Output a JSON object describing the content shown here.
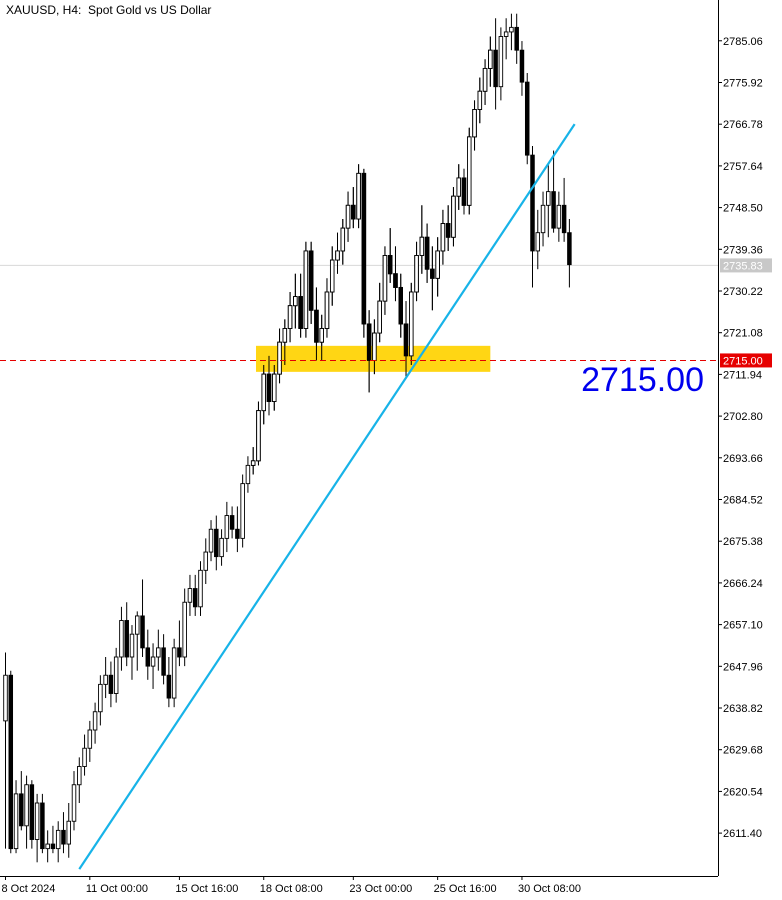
{
  "header": {
    "symbol": "XAUUSD, H4:",
    "description": "Spot Gold vs US Dollar"
  },
  "annotations": {
    "level_label": "2715.00",
    "level_marker": "2715.00",
    "current_price_marker": "2735.83"
  },
  "colors": {
    "trendline": "#17b3e8",
    "zone": "#ffd200",
    "level_line": "#e60000",
    "level_marker_bg": "#e60000",
    "big_label": "#0000ee",
    "current_marker_bg": "#c8c8c8"
  },
  "chart_data": {
    "type": "candlestick",
    "symbol": "XAUUSD",
    "timeframe": "H4",
    "ylim": [
      2602.0,
      2794.0
    ],
    "y_ticks": [
      "2785.06",
      "2775.92",
      "2766.78",
      "2757.64",
      "2748.50",
      "2739.36",
      "2730.22",
      "2721.08",
      "2711.94",
      "2702.80",
      "2693.66",
      "2684.52",
      "2675.38",
      "2666.24",
      "2657.10",
      "2647.96",
      "2638.82",
      "2629.68",
      "2620.54",
      "2611.40"
    ],
    "x_tick_labels": [
      {
        "label": "8 Oct 2024",
        "index": 0
      },
      {
        "label": "11 Oct 00:00",
        "index": 16
      },
      {
        "label": "15 Oct 16:00",
        "index": 33
      },
      {
        "label": "18 Oct 08:00",
        "index": 49
      },
      {
        "label": "23 Oct 00:00",
        "index": 66
      },
      {
        "label": "25 Oct 16:00",
        "index": 82
      },
      {
        "label": "30 Oct 08:00",
        "index": 98
      }
    ],
    "candles": [
      {
        "o": 2636,
        "h": 2651,
        "l": 2608,
        "c": 2646
      },
      {
        "o": 2646,
        "h": 2647,
        "l": 2607,
        "c": 2608
      },
      {
        "o": 2608,
        "h": 2623,
        "l": 2607,
        "c": 2620
      },
      {
        "o": 2620,
        "h": 2625,
        "l": 2612,
        "c": 2613
      },
      {
        "o": 2613,
        "h": 2624,
        "l": 2608,
        "c": 2622
      },
      {
        "o": 2622,
        "h": 2623,
        "l": 2608,
        "c": 2610
      },
      {
        "o": 2610,
        "h": 2620,
        "l": 2605,
        "c": 2618
      },
      {
        "o": 2618,
        "h": 2620,
        "l": 2607,
        "c": 2608
      },
      {
        "o": 2608,
        "h": 2612,
        "l": 2605,
        "c": 2609
      },
      {
        "o": 2609,
        "h": 2613,
        "l": 2607,
        "c": 2608
      },
      {
        "o": 2608,
        "h": 2614,
        "l": 2605,
        "c": 2612
      },
      {
        "o": 2612,
        "h": 2616,
        "l": 2607,
        "c": 2609
      },
      {
        "o": 2609,
        "h": 2618,
        "l": 2606,
        "c": 2614
      },
      {
        "o": 2614,
        "h": 2625,
        "l": 2612,
        "c": 2622
      },
      {
        "o": 2622,
        "h": 2628,
        "l": 2618,
        "c": 2626
      },
      {
        "o": 2626,
        "h": 2633,
        "l": 2624,
        "c": 2630
      },
      {
        "o": 2630,
        "h": 2636,
        "l": 2627,
        "c": 2634
      },
      {
        "o": 2634,
        "h": 2640,
        "l": 2631,
        "c": 2638
      },
      {
        "o": 2638,
        "h": 2646,
        "l": 2635,
        "c": 2644
      },
      {
        "o": 2644,
        "h": 2650,
        "l": 2641,
        "c": 2646
      },
      {
        "o": 2646,
        "h": 2649,
        "l": 2639,
        "c": 2642
      },
      {
        "o": 2642,
        "h": 2652,
        "l": 2640,
        "c": 2650
      },
      {
        "o": 2650,
        "h": 2661,
        "l": 2647,
        "c": 2658
      },
      {
        "o": 2658,
        "h": 2662,
        "l": 2648,
        "c": 2650
      },
      {
        "o": 2650,
        "h": 2657,
        "l": 2645,
        "c": 2655
      },
      {
        "o": 2655,
        "h": 2660,
        "l": 2647,
        "c": 2659
      },
      {
        "o": 2659,
        "h": 2667,
        "l": 2650,
        "c": 2652
      },
      {
        "o": 2652,
        "h": 2656,
        "l": 2645,
        "c": 2648
      },
      {
        "o": 2648,
        "h": 2653,
        "l": 2643,
        "c": 2650
      },
      {
        "o": 2650,
        "h": 2656,
        "l": 2647,
        "c": 2652
      },
      {
        "o": 2652,
        "h": 2655,
        "l": 2644,
        "c": 2646
      },
      {
        "o": 2646,
        "h": 2650,
        "l": 2639,
        "c": 2641
      },
      {
        "o": 2641,
        "h": 2654,
        "l": 2639,
        "c": 2652
      },
      {
        "o": 2652,
        "h": 2658,
        "l": 2648,
        "c": 2650
      },
      {
        "o": 2650,
        "h": 2665,
        "l": 2648,
        "c": 2662
      },
      {
        "o": 2662,
        "h": 2668,
        "l": 2659,
        "c": 2665
      },
      {
        "o": 2665,
        "h": 2668,
        "l": 2659,
        "c": 2661
      },
      {
        "o": 2661,
        "h": 2671,
        "l": 2659,
        "c": 2669
      },
      {
        "o": 2669,
        "h": 2676,
        "l": 2666,
        "c": 2673
      },
      {
        "o": 2673,
        "h": 2680,
        "l": 2671,
        "c": 2678
      },
      {
        "o": 2678,
        "h": 2681,
        "l": 2669,
        "c": 2672
      },
      {
        "o": 2672,
        "h": 2678,
        "l": 2670,
        "c": 2676
      },
      {
        "o": 2676,
        "h": 2684,
        "l": 2673,
        "c": 2681
      },
      {
        "o": 2681,
        "h": 2683,
        "l": 2676,
        "c": 2678
      },
      {
        "o": 2678,
        "h": 2683,
        "l": 2673,
        "c": 2676
      },
      {
        "o": 2676,
        "h": 2690,
        "l": 2674,
        "c": 2688
      },
      {
        "o": 2688,
        "h": 2694,
        "l": 2686,
        "c": 2692
      },
      {
        "o": 2692,
        "h": 2696,
        "l": 2690,
        "c": 2693
      },
      {
        "o": 2693,
        "h": 2706,
        "l": 2692,
        "c": 2704
      },
      {
        "o": 2704,
        "h": 2714,
        "l": 2701,
        "c": 2712
      },
      {
        "o": 2712,
        "h": 2716,
        "l": 2703,
        "c": 2706
      },
      {
        "o": 2706,
        "h": 2714,
        "l": 2704,
        "c": 2712
      },
      {
        "o": 2712,
        "h": 2722,
        "l": 2710,
        "c": 2719
      },
      {
        "o": 2719,
        "h": 2724,
        "l": 2714,
        "c": 2722
      },
      {
        "o": 2722,
        "h": 2730,
        "l": 2719,
        "c": 2727
      },
      {
        "o": 2727,
        "h": 2734,
        "l": 2722,
        "c": 2729
      },
      {
        "o": 2729,
        "h": 2734,
        "l": 2720,
        "c": 2722
      },
      {
        "o": 2722,
        "h": 2741,
        "l": 2720,
        "c": 2739
      },
      {
        "o": 2739,
        "h": 2741,
        "l": 2723,
        "c": 2726
      },
      {
        "o": 2726,
        "h": 2731,
        "l": 2715,
        "c": 2719
      },
      {
        "o": 2719,
        "h": 2725,
        "l": 2715,
        "c": 2722
      },
      {
        "o": 2722,
        "h": 2733,
        "l": 2720,
        "c": 2730
      },
      {
        "o": 2730,
        "h": 2740,
        "l": 2727,
        "c": 2737
      },
      {
        "o": 2737,
        "h": 2743,
        "l": 2734,
        "c": 2739
      },
      {
        "o": 2739,
        "h": 2746,
        "l": 2736,
        "c": 2744
      },
      {
        "o": 2744,
        "h": 2752,
        "l": 2741,
        "c": 2749
      },
      {
        "o": 2749,
        "h": 2753,
        "l": 2744,
        "c": 2746
      },
      {
        "o": 2746,
        "h": 2758,
        "l": 2744,
        "c": 2756
      },
      {
        "o": 2756,
        "h": 2757,
        "l": 2720,
        "c": 2723
      },
      {
        "o": 2723,
        "h": 2726,
        "l": 2708,
        "c": 2715
      },
      {
        "o": 2715,
        "h": 2724,
        "l": 2712,
        "c": 2721
      },
      {
        "o": 2721,
        "h": 2732,
        "l": 2719,
        "c": 2728
      },
      {
        "o": 2728,
        "h": 2740,
        "l": 2725,
        "c": 2738
      },
      {
        "o": 2738,
        "h": 2744,
        "l": 2732,
        "c": 2734
      },
      {
        "o": 2734,
        "h": 2740,
        "l": 2728,
        "c": 2731
      },
      {
        "o": 2731,
        "h": 2734,
        "l": 2720,
        "c": 2723
      },
      {
        "o": 2723,
        "h": 2728,
        "l": 2711,
        "c": 2716
      },
      {
        "o": 2716,
        "h": 2732,
        "l": 2714,
        "c": 2730
      },
      {
        "o": 2730,
        "h": 2741,
        "l": 2728,
        "c": 2738
      },
      {
        "o": 2738,
        "h": 2749,
        "l": 2734,
        "c": 2742
      },
      {
        "o": 2742,
        "h": 2745,
        "l": 2732,
        "c": 2735
      },
      {
        "o": 2735,
        "h": 2740,
        "l": 2726,
        "c": 2733
      },
      {
        "o": 2733,
        "h": 2742,
        "l": 2729,
        "c": 2739
      },
      {
        "o": 2739,
        "h": 2748,
        "l": 2736,
        "c": 2745
      },
      {
        "o": 2745,
        "h": 2749,
        "l": 2739,
        "c": 2742
      },
      {
        "o": 2742,
        "h": 2753,
        "l": 2740,
        "c": 2751
      },
      {
        "o": 2751,
        "h": 2758,
        "l": 2748,
        "c": 2755
      },
      {
        "o": 2755,
        "h": 2757,
        "l": 2747,
        "c": 2749
      },
      {
        "o": 2749,
        "h": 2766,
        "l": 2747,
        "c": 2764
      },
      {
        "o": 2764,
        "h": 2772,
        "l": 2761,
        "c": 2770
      },
      {
        "o": 2770,
        "h": 2777,
        "l": 2767,
        "c": 2774
      },
      {
        "o": 2774,
        "h": 2781,
        "l": 2771,
        "c": 2779
      },
      {
        "o": 2779,
        "h": 2786,
        "l": 2775,
        "c": 2783
      },
      {
        "o": 2783,
        "h": 2790,
        "l": 2770,
        "c": 2775
      },
      {
        "o": 2775,
        "h": 2788,
        "l": 2772,
        "c": 2786
      },
      {
        "o": 2786,
        "h": 2790,
        "l": 2781,
        "c": 2787
      },
      {
        "o": 2787,
        "h": 2791,
        "l": 2783,
        "c": 2788
      },
      {
        "o": 2788,
        "h": 2791,
        "l": 2780,
        "c": 2783
      },
      {
        "o": 2783,
        "h": 2785,
        "l": 2773,
        "c": 2776
      },
      {
        "o": 2776,
        "h": 2778,
        "l": 2758,
        "c": 2760
      },
      {
        "o": 2760,
        "h": 2762,
        "l": 2731,
        "c": 2739
      },
      {
        "o": 2739,
        "h": 2748,
        "l": 2735,
        "c": 2743
      },
      {
        "o": 2743,
        "h": 2752,
        "l": 2740,
        "c": 2749
      },
      {
        "o": 2749,
        "h": 2758,
        "l": 2742,
        "c": 2752
      },
      {
        "o": 2752,
        "h": 2761,
        "l": 2743,
        "c": 2744
      },
      {
        "o": 2744,
        "h": 2752,
        "l": 2741,
        "c": 2749
      },
      {
        "o": 2749,
        "h": 2755,
        "l": 2741,
        "c": 2743
      },
      {
        "o": 2743,
        "h": 2746,
        "l": 2731,
        "c": 2736
      }
    ],
    "current_price": 2735.83,
    "horizontal_level": 2715.0,
    "support_zone": {
      "from_index": 50,
      "to_index": 92,
      "low": 2712.5,
      "high": 2718.2
    },
    "trendline": {
      "start": {
        "index": 14,
        "price": 2603.5
      },
      "end": {
        "index": 108,
        "price": 2766.8
      }
    }
  }
}
